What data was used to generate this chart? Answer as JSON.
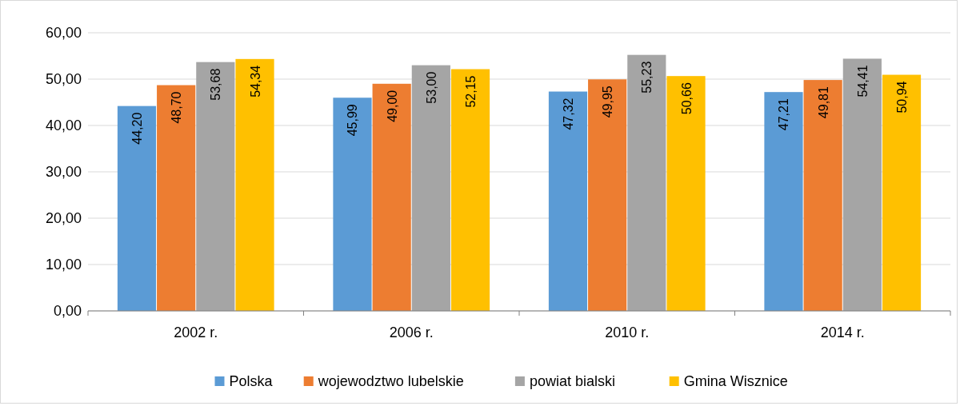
{
  "chart_data": {
    "type": "bar",
    "categories": [
      "2002 r.",
      "2006 r.",
      "2010 r.",
      "2014 r."
    ],
    "series": [
      {
        "name": "Polska",
        "color": "#5b9bd5",
        "values": [
          44.2,
          45.99,
          47.32,
          47.21
        ],
        "value_labels": [
          "44,20",
          "45,99",
          "47,32",
          "47,21"
        ]
      },
      {
        "name": "wojewodztwo lubelskie",
        "color": "#ed7d31",
        "values": [
          48.7,
          49.0,
          49.95,
          49.81
        ],
        "value_labels": [
          "48,70",
          "49,00",
          "49,95",
          "49,81"
        ]
      },
      {
        "name": "powiat bialski",
        "color": "#a5a5a5",
        "values": [
          53.68,
          53.0,
          55.23,
          54.41
        ],
        "value_labels": [
          "53,68",
          "53,00",
          "55,23",
          "54,41"
        ]
      },
      {
        "name": "Gmina Wisznice",
        "color": "#ffc000",
        "values": [
          54.34,
          52.15,
          50.66,
          50.94
        ],
        "value_labels": [
          "54,34",
          "52,15",
          "50,66",
          "50,94"
        ]
      }
    ],
    "ylim": [
      0,
      60
    ],
    "yticks": [
      {
        "value": 0,
        "label": "0,00"
      },
      {
        "value": 10,
        "label": "10,00"
      },
      {
        "value": 20,
        "label": "20,00"
      },
      {
        "value": 30,
        "label": "30,00"
      },
      {
        "value": 40,
        "label": "40,00"
      },
      {
        "value": 50,
        "label": "50,00"
      },
      {
        "value": 60,
        "label": "60,00"
      }
    ],
    "grid": "y",
    "legend": "bottom"
  }
}
